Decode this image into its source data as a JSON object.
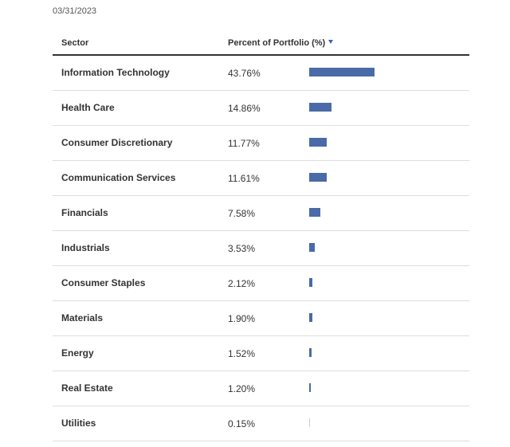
{
  "as_of_date": "03/31/2023",
  "table": {
    "headers": {
      "sector": "Sector",
      "percent": "Percent of Portfolio (%)"
    },
    "sort_icon": "caret-down-icon",
    "bar_color": "#4a6aa8",
    "rows": [
      {
        "sector": "Information Technology",
        "percent_label": "43.76%",
        "value": 43.76
      },
      {
        "sector": "Health Care",
        "percent_label": "14.86%",
        "value": 14.86
      },
      {
        "sector": "Consumer Discretionary",
        "percent_label": "11.77%",
        "value": 11.77
      },
      {
        "sector": "Communication Services",
        "percent_label": "11.61%",
        "value": 11.61
      },
      {
        "sector": "Financials",
        "percent_label": "7.58%",
        "value": 7.58
      },
      {
        "sector": "Industrials",
        "percent_label": "3.53%",
        "value": 3.53
      },
      {
        "sector": "Consumer Staples",
        "percent_label": "2.12%",
        "value": 2.12
      },
      {
        "sector": "Materials",
        "percent_label": "1.90%",
        "value": 1.9
      },
      {
        "sector": "Energy",
        "percent_label": "1.52%",
        "value": 1.52
      },
      {
        "sector": "Real Estate",
        "percent_label": "1.20%",
        "value": 1.2
      },
      {
        "sector": "Utilities",
        "percent_label": "0.15%",
        "value": 0.15
      }
    ]
  }
}
